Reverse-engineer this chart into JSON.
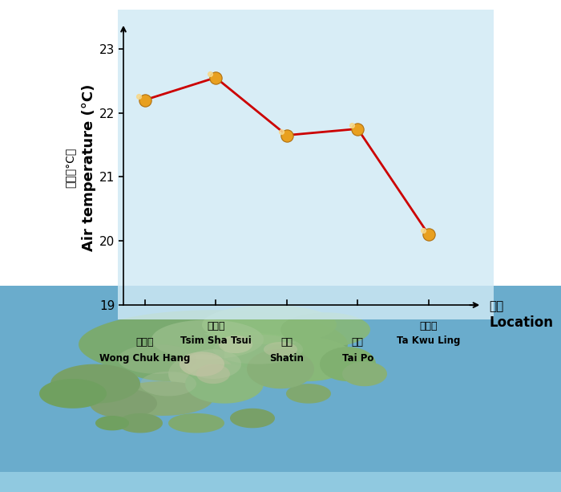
{
  "locations": [
    "Wong Chuk Hang",
    "Tsim Sha Tsui",
    "Shatin",
    "Tai Po",
    "Ta Kwu Ling"
  ],
  "locations_chinese": [
    "黃竹坑",
    "尖沙和",
    "沙田",
    "大埔",
    "打鼓岺"
  ],
  "x_values": [
    0,
    1,
    2,
    3,
    4
  ],
  "y_values": [
    22.2,
    22.55,
    21.65,
    21.75,
    20.1
  ],
  "ylim": [
    19.0,
    23.3
  ],
  "yticks": [
    19,
    20,
    21,
    22,
    23
  ],
  "bg_panel_color": "#d8eef5",
  "bg_panel_alpha": 0.85,
  "line_color": "#cc0000",
  "marker_color": "#e8a020",
  "marker_edge_color": "#b07010",
  "marker_shine_color": "#f8d888",
  "marker_size": 11,
  "line_width": 2.0,
  "ylabel_en": "Air temperature (°C)",
  "ylabel_cn": "氣溫（°C）",
  "xlabel_en": "Location",
  "xlabel_cn": "地點",
  "map_color_water": "#6aaccc",
  "map_color_land": "#8ab890",
  "map_color_base": "#5599bb",
  "panel_bg": "#cce8f0",
  "axis_color": "black",
  "tick_label_size": 11,
  "ylabel_size": 13,
  "xlabel_size": 12,
  "label_locations_on_axis": [
    1,
    4
  ],
  "label_locations_below": [
    0,
    2,
    3
  ]
}
